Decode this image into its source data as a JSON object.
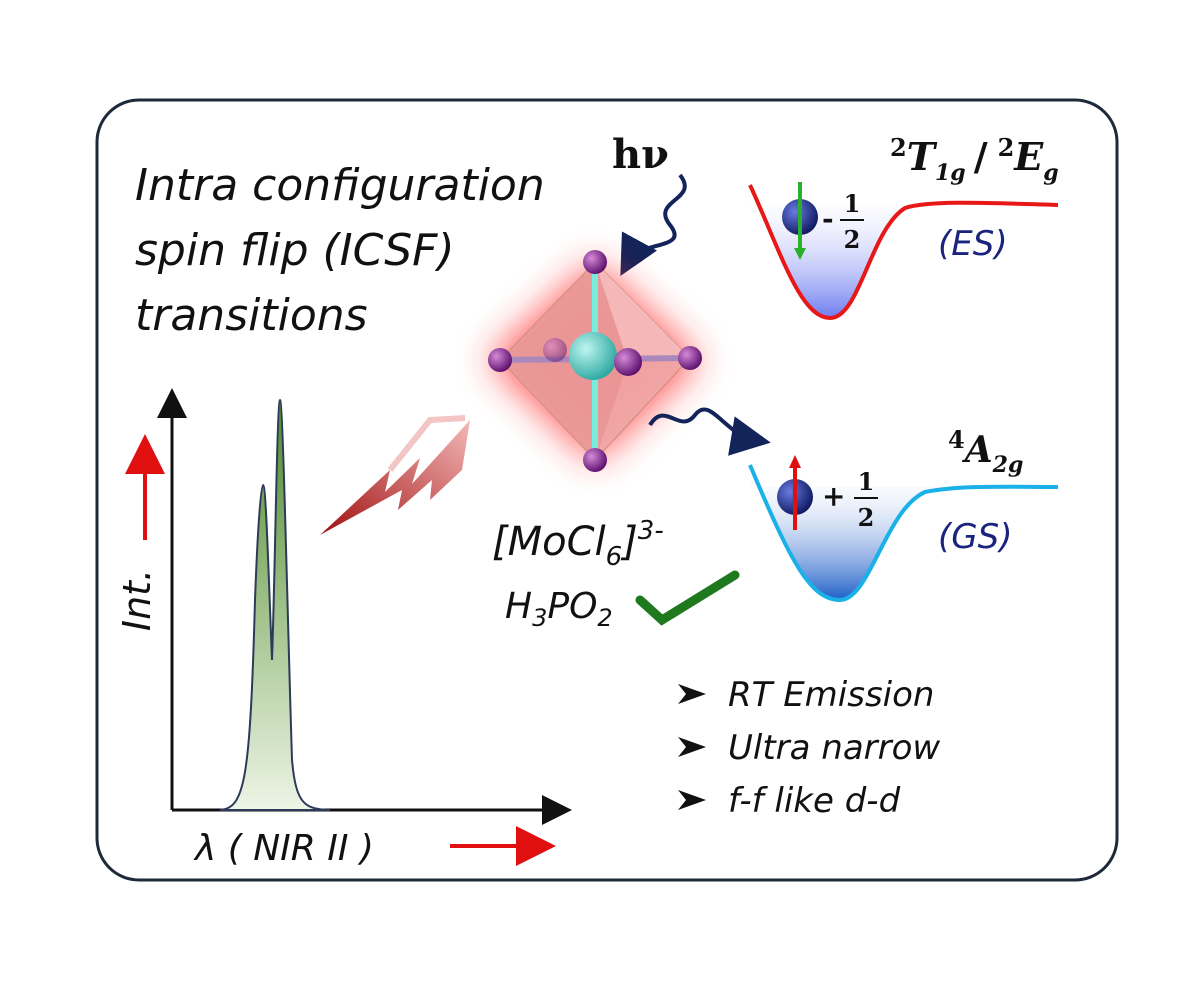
{
  "title_lines": [
    "Intra configuration",
    "spin flip (ICSF)",
    "transitions"
  ],
  "excitation": {
    "label": "hν"
  },
  "excited_state": {
    "term_a": {
      "sup": "2",
      "base": "T",
      "sub": "1g"
    },
    "separator": "/",
    "term_b": {
      "sup": "2",
      "base": "E",
      "sub": "g"
    },
    "label": "(ES)",
    "spin": {
      "sign": "-",
      "num": "1",
      "den": "2"
    }
  },
  "ground_state": {
    "term": {
      "sup": "4",
      "base": "A",
      "sub": "2g"
    },
    "label": "(GS)",
    "spin": {
      "sign": "+",
      "num": "1",
      "den": "2"
    }
  },
  "complex": {
    "open": "[MoCl",
    "sub": "6",
    "close": "]",
    "sup": "3-"
  },
  "reductant": {
    "a": "H",
    "s1": "3",
    "b": "PO",
    "s2": "2"
  },
  "spectrum": {
    "y_label": "Int.",
    "x_label": "λ ( NIR II )"
  },
  "features": [
    "RT Emission",
    "Ultra narrow",
    "f-f like d-d"
  ]
}
